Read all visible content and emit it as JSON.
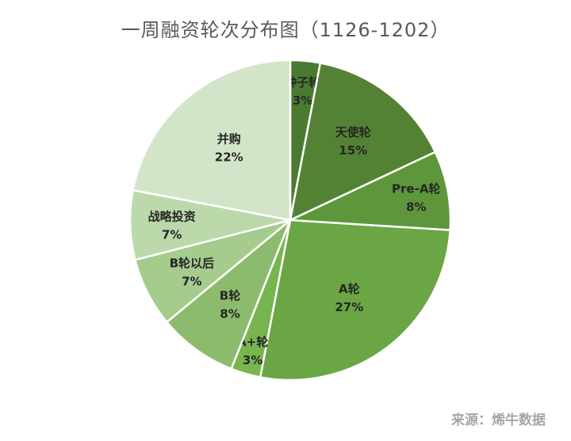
{
  "chart_data": {
    "type": "pie",
    "title": "一周融资轮次分布图（1126-1202）",
    "slices": [
      {
        "label": "种子轮",
        "pct_label": "3%",
        "value": 3,
        "color": "#4a7a31"
      },
      {
        "label": "天使轮",
        "pct_label": "15%",
        "value": 15,
        "color": "#548235"
      },
      {
        "label": "Pre-A轮",
        "pct_label": "8%",
        "value": 8,
        "color": "#5e973b"
      },
      {
        "label": "A轮",
        "pct_label": "27%",
        "value": 27,
        "color": "#6aa644"
      },
      {
        "label": "A+轮",
        "pct_label": "3%",
        "value": 3,
        "color": "#77b54f"
      },
      {
        "label": "B轮",
        "pct_label": "8%",
        "value": 8,
        "color": "#8dbb6e"
      },
      {
        "label": "B轮以后",
        "pct_label": "7%",
        "value": 7,
        "color": "#a5cb8d"
      },
      {
        "label": "战略投资",
        "pct_label": "7%",
        "value": 7,
        "color": "#bcd9ab"
      },
      {
        "label": "并购",
        "pct_label": "22%",
        "value": 22,
        "color": "#d3e5c8"
      }
    ]
  },
  "source": "来源：烯牛数据"
}
